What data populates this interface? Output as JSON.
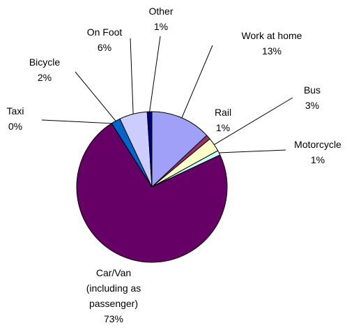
{
  "chart_data": {
    "type": "pie",
    "categories": [
      "Work at home",
      "Rail",
      "Bus",
      "Motorcycle",
      "Car/Van (including as passenger)",
      "Taxi",
      "Bicycle",
      "On Foot",
      "Other"
    ],
    "values": [
      13,
      1,
      3,
      1,
      73,
      0,
      2,
      6,
      1
    ],
    "value_labels": [
      "13%",
      "1%",
      "3%",
      "1%",
      "73%",
      "0%",
      "2%",
      "6%",
      "1%"
    ],
    "colors": [
      "#a0a0f8",
      "#993366",
      "#ffffcc",
      "#ccffff",
      "#660066",
      "#ff8080",
      "#0066cc",
      "#ccccff",
      "#000080"
    ]
  }
}
